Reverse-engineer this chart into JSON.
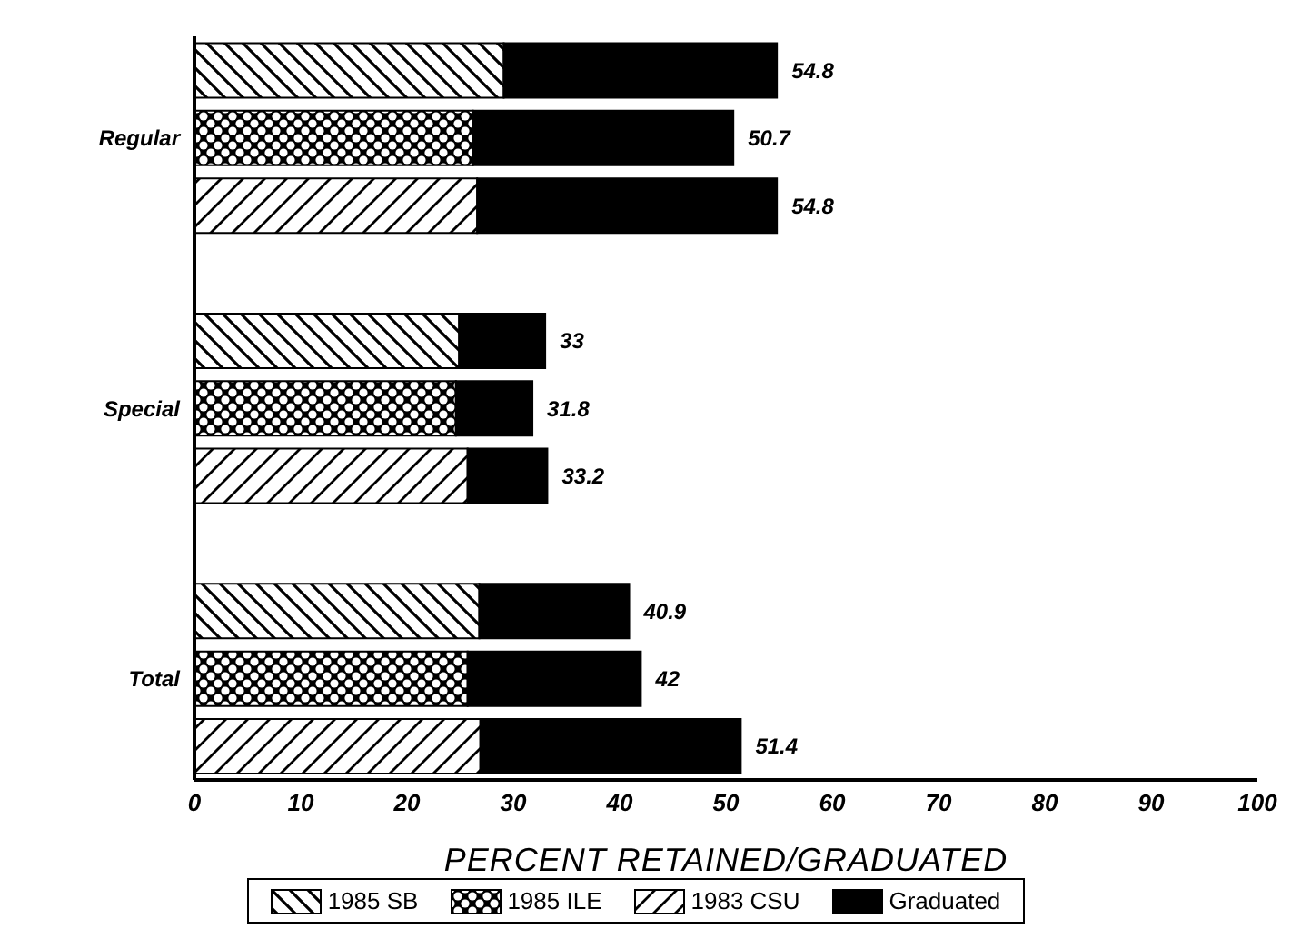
{
  "chart_data": {
    "type": "bar",
    "orientation": "horizontal",
    "stacked": true,
    "xlabel": "PERCENT RETAINED/GRADUATED",
    "categories": [
      null,
      "Regular",
      null,
      null,
      null,
      "Special",
      null,
      null,
      null,
      "Total",
      null
    ],
    "series": [
      {
        "name": "1985 SB",
        "color": "#000000",
        "values": [
          29.1,
          null,
          null,
          null,
          24.9,
          null,
          null,
          null,
          26.8,
          null,
          null
        ]
      },
      {
        "name": "1985 ILE",
        "color": "#000000",
        "values": [
          null,
          26.2,
          null,
          null,
          null,
          24.6,
          null,
          null,
          null,
          25.7,
          null
        ]
      },
      {
        "name": "1983 CSU",
        "color": "#000000",
        "values": [
          null,
          null,
          26.6,
          null,
          null,
          null,
          25.7,
          null,
          null,
          null,
          26.9
        ]
      },
      {
        "name": "Graduated",
        "color": "#000000",
        "values": [
          25.7,
          24.5,
          28.2,
          null,
          8.1,
          7.2,
          7.5,
          null,
          14.1,
          16.3,
          24.5
        ]
      }
    ],
    "totals": [
      "54.8",
      "50.7",
      "54.8",
      null,
      "33",
      "31.8",
      "33.2",
      null,
      "40.9",
      "42",
      "51.4"
    ],
    "xlim": [
      0,
      100
    ],
    "xticks": [
      0,
      10,
      20,
      30,
      40,
      50,
      60,
      70,
      80,
      90,
      100
    ],
    "grid": false,
    "legend": "bottom"
  }
}
